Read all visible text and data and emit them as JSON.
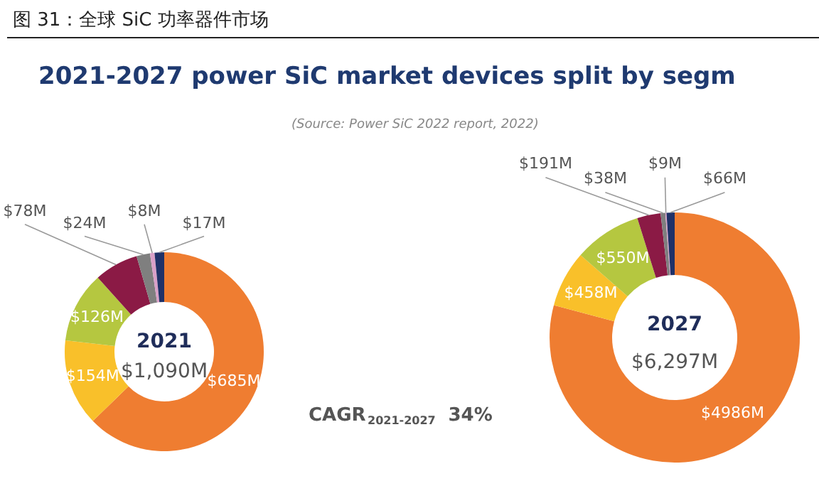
{
  "chart_data": [
    {
      "type": "donut",
      "title": "图 31：全球 SiC 功率器件市场",
      "subtitle": "2021-2027 power SiC market devices split by segm",
      "annotations": [
        "2021",
        "$1,090M",
        "(Source: Power SiC 2022 report, 2022)",
        "CAGR$_{2021-2027}$ 34%"
      ],
      "categories": [
        null,
        null,
        null,
        null,
        null,
        null,
        null
      ],
      "values": [
        685,
        154,
        126,
        78,
        24,
        8,
        17
      ],
      "colors": [
        "#ef7d31",
        "#f9c02a",
        "#b5c740",
        "#8b1a45",
        "#7f7f7f",
        "#d9a0c8",
        "#1f3168"
      ],
      "value_labels": [
        "$685M",
        "$154M",
        "$126M",
        "$78M",
        "$24M",
        "$8M",
        "$17M"
      ]
    },
    {
      "type": "donut",
      "annotations": [
        "2027",
        "$6,297M"
      ],
      "categories": [
        null,
        null,
        null,
        null,
        null,
        null,
        null
      ],
      "values": [
        4986,
        458,
        550,
        191,
        38,
        9,
        66
      ],
      "colors": [
        "#ef7d31",
        "#f9c02a",
        "#b5c740",
        "#8b1a45",
        "#7f7f7f",
        "#d9a0c8",
        "#1f3168"
      ],
      "value_labels": [
        "$4986M",
        "$458M",
        "$550M",
        "$191M",
        "$38M",
        "$9M",
        "$66M"
      ]
    }
  ]
}
